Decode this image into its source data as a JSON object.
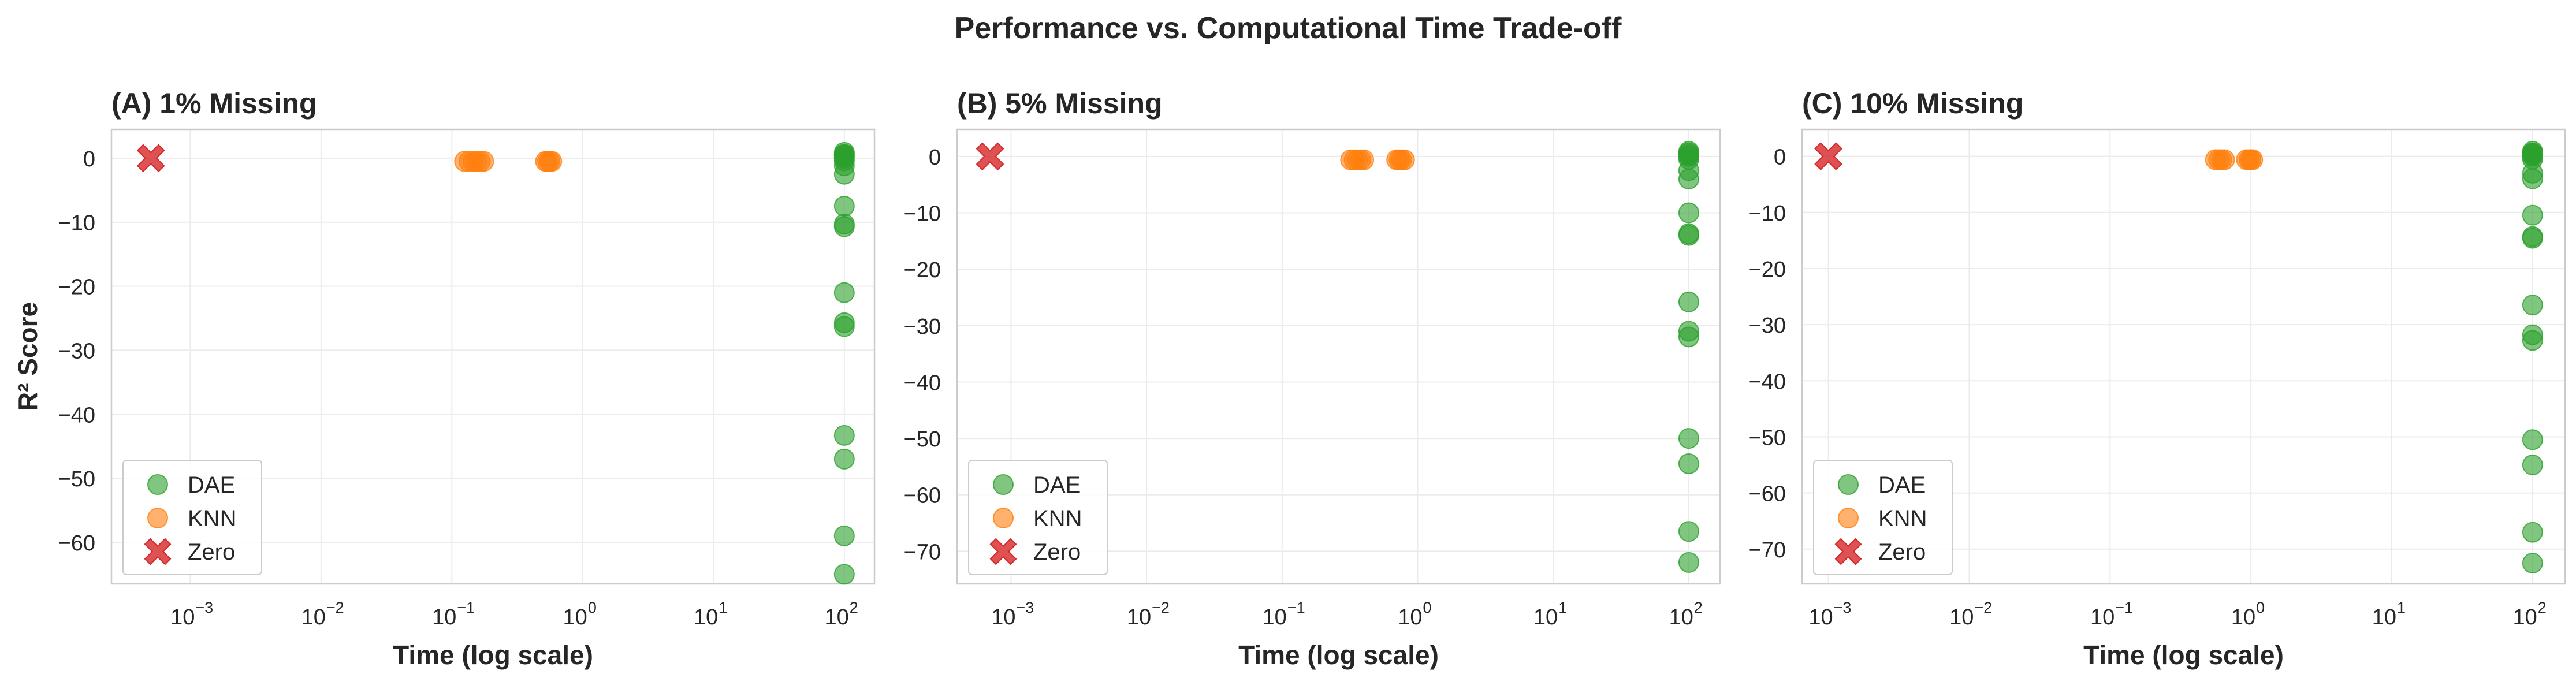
{
  "figure": {
    "title": "Performance vs. Computational Time Trade-off"
  },
  "chart_data": [
    {
      "type": "scatter",
      "title": "(A) 1% Missing",
      "xlabel": "Time (log scale)",
      "ylabel": "R² Score",
      "xscale": "log",
      "xlim": [
        0.00025,
        170
      ],
      "ylim": [
        -66.5,
        4.5
      ],
      "xticks": [
        0.001,
        0.01,
        0.1,
        1,
        10,
        100
      ],
      "xtick_labels": [
        [
          "10",
          "−3"
        ],
        [
          "10",
          "−2"
        ],
        [
          "10",
          "−1"
        ],
        [
          "10",
          "0"
        ],
        [
          "10",
          "1"
        ],
        [
          "10",
          "2"
        ]
      ],
      "yticks": [
        0,
        -10,
        -20,
        -30,
        -40,
        -50,
        -60
      ],
      "ytick_labels": [
        "0",
        "−10",
        "−20",
        "−30",
        "−40",
        "−50",
        "−60"
      ],
      "grid": true,
      "legend_position": "lower-left",
      "series": [
        {
          "name": "DAE",
          "color": "#2ca02c",
          "marker": "circle",
          "x": [
            100,
            100,
            100,
            100,
            100,
            100,
            100,
            100,
            100,
            100,
            100,
            100,
            100,
            100,
            100,
            100,
            100,
            100
          ],
          "y": [
            0.9,
            0.6,
            0.3,
            0,
            -0.4,
            -1.2,
            -2.5,
            -7.5,
            -10.3,
            -10.7,
            -21,
            -25.7,
            -26.3,
            -43.3,
            -47,
            -59,
            -65,
            0.5
          ]
        },
        {
          "name": "KNN",
          "color": "#ff7f0e",
          "marker": "circle",
          "x": [
            0.125,
            0.135,
            0.145,
            0.155,
            0.165,
            0.175,
            0.52,
            0.54,
            0.56,
            0.58
          ],
          "y": [
            -0.5,
            -0.5,
            -0.5,
            -0.5,
            -0.5,
            -0.5,
            -0.5,
            -0.5,
            -0.5,
            -0.5
          ]
        },
        {
          "name": "Zero",
          "color": "#d62728",
          "marker": "x",
          "x": [
            0.0005
          ],
          "y": [
            0
          ]
        }
      ]
    },
    {
      "type": "scatter",
      "title": "(B) 5% Missing",
      "xlabel": "Time (log scale)",
      "ylabel": "",
      "xscale": "log",
      "xlim": [
        0.0004,
        170
      ],
      "ylim": [
        -75.8,
        4.8
      ],
      "xticks": [
        0.001,
        0.01,
        0.1,
        1,
        10,
        100
      ],
      "xtick_labels": [
        [
          "10",
          "−3"
        ],
        [
          "10",
          "−2"
        ],
        [
          "10",
          "−1"
        ],
        [
          "10",
          "0"
        ],
        [
          "10",
          "1"
        ],
        [
          "10",
          "2"
        ]
      ],
      "yticks": [
        0,
        -10,
        -20,
        -30,
        -40,
        -50,
        -60,
        -70
      ],
      "ytick_labels": [
        "0",
        "−10",
        "−20",
        "−30",
        "−40",
        "−50",
        "−60",
        "−70"
      ],
      "grid": true,
      "legend_position": "lower-left",
      "series": [
        {
          "name": "DAE",
          "color": "#2ca02c",
          "marker": "circle",
          "x": [
            100,
            100,
            100,
            100,
            100,
            100,
            100,
            100,
            100,
            100,
            100,
            100,
            100,
            100,
            100,
            100,
            100
          ],
          "y": [
            0.9,
            0.6,
            0.3,
            0,
            -0.5,
            -2.5,
            -4,
            -10,
            -13.7,
            -14,
            -25.8,
            -31,
            -32,
            -50,
            -54.5,
            -66.5,
            -72
          ]
        },
        {
          "name": "KNN",
          "color": "#ff7f0e",
          "marker": "circle",
          "x": [
            0.32,
            0.34,
            0.36,
            0.38,
            0.4,
            0.7,
            0.73,
            0.76,
            0.8
          ],
          "y": [
            -0.6,
            -0.6,
            -0.6,
            -0.6,
            -0.6,
            -0.6,
            -0.6,
            -0.6,
            -0.6
          ]
        },
        {
          "name": "Zero",
          "color": "#d62728",
          "marker": "x",
          "x": [
            0.0007
          ],
          "y": [
            0
          ]
        }
      ]
    },
    {
      "type": "scatter",
      "title": "(C) 10% Missing",
      "xlabel": "Time (log scale)",
      "ylabel": "",
      "xscale": "log",
      "xlim": [
        0.00065,
        170
      ],
      "ylim": [
        -76.2,
        4.8
      ],
      "xticks": [
        0.001,
        0.01,
        0.1,
        1,
        10,
        100
      ],
      "xtick_labels": [
        [
          "10",
          "−3"
        ],
        [
          "10",
          "−2"
        ],
        [
          "10",
          "−1"
        ],
        [
          "10",
          "0"
        ],
        [
          "10",
          "1"
        ],
        [
          "10",
          "2"
        ]
      ],
      "yticks": [
        0,
        -10,
        -20,
        -30,
        -40,
        -50,
        -60,
        -70
      ],
      "ytick_labels": [
        "0",
        "−10",
        "−20",
        "−30",
        "−40",
        "−50",
        "−60",
        "−70"
      ],
      "grid": true,
      "legend_position": "lower-left",
      "series": [
        {
          "name": "DAE",
          "color": "#2ca02c",
          "marker": "circle",
          "x": [
            100,
            100,
            100,
            100,
            100,
            100,
            100,
            100,
            100,
            100,
            100,
            100,
            100,
            100,
            100,
            100,
            100,
            100
          ],
          "y": [
            0.9,
            0.6,
            0.3,
            0,
            -0.5,
            -3,
            -4,
            -10.5,
            -14.3,
            -14.6,
            -26.5,
            -31.8,
            -32.8,
            -50.5,
            -55,
            -67,
            -72.5,
            0.5
          ]
        },
        {
          "name": "KNN",
          "color": "#ff7f0e",
          "marker": "circle",
          "x": [
            0.56,
            0.59,
            0.62,
            0.65,
            0.93,
            0.97,
            1.0,
            1.03
          ],
          "y": [
            -0.6,
            -0.6,
            -0.6,
            -0.6,
            -0.6,
            -0.6,
            -0.6,
            -0.6
          ]
        },
        {
          "name": "Zero",
          "color": "#d62728",
          "marker": "x",
          "x": [
            0.001
          ],
          "y": [
            0
          ]
        }
      ]
    }
  ]
}
